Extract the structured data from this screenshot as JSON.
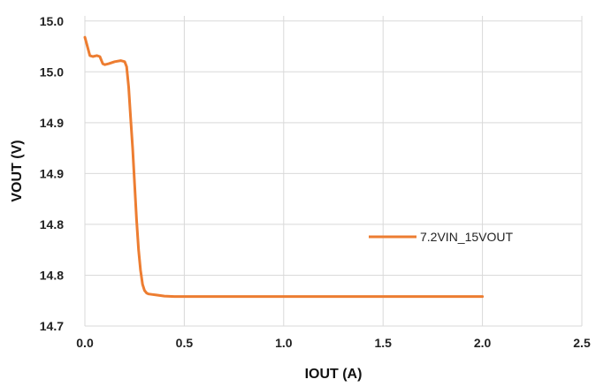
{
  "chart_data": {
    "type": "line",
    "xlabel": "IOUT (A)",
    "ylabel": "VOUT (V)",
    "xlim": [
      0,
      2.5
    ],
    "ylim": [
      14.7,
      15.005
    ],
    "x_ticks": [
      {
        "value": 0.0,
        "label": "0.0"
      },
      {
        "value": 0.5,
        "label": "0.5"
      },
      {
        "value": 1.0,
        "label": "1.0"
      },
      {
        "value": 1.5,
        "label": "1.5"
      },
      {
        "value": 2.0,
        "label": "2.0"
      },
      {
        "value": 2.5,
        "label": "2.5"
      }
    ],
    "y_ticks": [
      {
        "value": 14.7,
        "label": "14.7"
      },
      {
        "value": 14.75,
        "label": "14.8"
      },
      {
        "value": 14.8,
        "label": "14.8"
      },
      {
        "value": 14.85,
        "label": "14.9"
      },
      {
        "value": 14.9,
        "label": "14.9"
      },
      {
        "value": 14.95,
        "label": "15.0"
      },
      {
        "value": 15.0,
        "label": "15.0"
      }
    ],
    "grid": true,
    "legend_position": "right",
    "series": [
      {
        "name": "7.2VIN_15VOUT",
        "color": "#ED7D31",
        "x": [
          0.0,
          0.01,
          0.025,
          0.04,
          0.06,
          0.075,
          0.09,
          0.1,
          0.12,
          0.15,
          0.18,
          0.2,
          0.21,
          0.22,
          0.23,
          0.24,
          0.25,
          0.26,
          0.27,
          0.28,
          0.29,
          0.3,
          0.31,
          0.32,
          0.34,
          0.36,
          0.4,
          0.45,
          0.5,
          0.7,
          1.0,
          1.5,
          2.0
        ],
        "y": [
          14.984,
          14.977,
          14.966,
          14.965,
          14.966,
          14.965,
          14.958,
          14.957,
          14.958,
          14.96,
          14.961,
          14.96,
          14.955,
          14.935,
          14.905,
          14.875,
          14.84,
          14.805,
          14.775,
          14.755,
          14.741,
          14.735,
          14.7325,
          14.7315,
          14.731,
          14.7305,
          14.7295,
          14.729,
          14.729,
          14.729,
          14.729,
          14.729,
          14.729
        ]
      }
    ]
  }
}
